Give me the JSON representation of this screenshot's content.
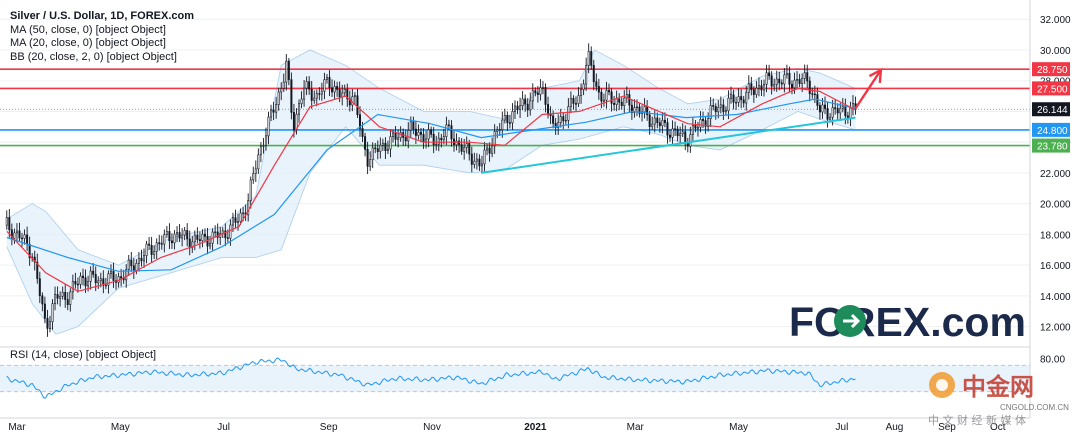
{
  "legend": {
    "title": "Silver / U.S. Dollar, 1D, FOREX.com",
    "ma50": "MA (50, close, 0) [object Object]",
    "ma20": "MA (20, close, 0) [object Object]",
    "bb": "BB (20, close, 2, 0) [object Object]",
    "rsi": "RSI (14, close) [object Object]"
  },
  "logo": {
    "text": "FOREX.com",
    "cn_text": "中金网",
    "cn_sub": "中 文 财 经 新 媒 体",
    "cn_url": "CNGOLD.COM.CN"
  },
  "colors": {
    "candle": "#131722",
    "ma20": "#f23645",
    "ma50": "#2196f3",
    "bb_fill": "#e3f0fb",
    "resistance": "#f23645",
    "support_blue": "#2196f3",
    "support_green": "#4caf50",
    "trendline": "#26c6da",
    "arrow": "#f23645",
    "logo_green": "#1e8c5a",
    "logo_navy": "#1b2a4a"
  },
  "chart_data": {
    "type": "candlestick",
    "title": "Silver / U.S. Dollar, 1D, FOREX.com",
    "y_ticks": [
      "12.000",
      "14.000",
      "16.000",
      "18.000",
      "20.000",
      "22.000",
      "24.000",
      "26.000",
      "28.000",
      "30.000",
      "32.000"
    ],
    "x_ticks": [
      "Mar",
      "May",
      "Jul",
      "Sep",
      "Nov",
      "2021",
      "Mar",
      "May",
      "Jul",
      "Aug",
      "Sep",
      "Oct"
    ],
    "ylim": [
      11,
      32.6
    ],
    "current_price": "26.144",
    "levels": [
      {
        "label": "28.750",
        "value": 28.75,
        "color": "#f23645"
      },
      {
        "label": "27.500",
        "value": 27.5,
        "color": "#f23645"
      },
      {
        "label": "24.800",
        "value": 24.8,
        "color": "#2196f3"
      },
      {
        "label": "23.780",
        "value": 23.78,
        "color": "#4caf50"
      }
    ],
    "close_path": [
      [
        "2020-02-24",
        18.6
      ],
      [
        "2020-03-05",
        17.6
      ],
      [
        "2020-03-10",
        16.8
      ],
      [
        "2020-03-13",
        15.0
      ],
      [
        "2020-03-18",
        12.0
      ],
      [
        "2020-03-24",
        13.9
      ],
      [
        "2020-03-31",
        14.0
      ],
      [
        "2020-04-08",
        15.2
      ],
      [
        "2020-04-20",
        15.0
      ],
      [
        "2020-05-01",
        15.2
      ],
      [
        "2020-05-18",
        17.0
      ],
      [
        "2020-06-01",
        18.0
      ],
      [
        "2020-06-15",
        17.6
      ],
      [
        "2020-07-01",
        18.0
      ],
      [
        "2020-07-10",
        19.0
      ],
      [
        "2020-07-15",
        20.0
      ],
      [
        "2020-07-21",
        23.0
      ],
      [
        "2020-07-27",
        25.0
      ],
      [
        "2020-08-05",
        28.0
      ],
      [
        "2020-08-07",
        29.0
      ],
      [
        "2020-08-11",
        25.0
      ],
      [
        "2020-08-17",
        27.5
      ],
      [
        "2020-08-25",
        27.0
      ],
      [
        "2020-09-01",
        28.0
      ],
      [
        "2020-09-08",
        27.0
      ],
      [
        "2020-09-16",
        27.0
      ],
      [
        "2020-09-21",
        24.0
      ],
      [
        "2020-09-24",
        23.0
      ],
      [
        "2020-10-06",
        24.0
      ],
      [
        "2020-10-20",
        24.8
      ],
      [
        "2020-11-04",
        24.0
      ],
      [
        "2020-11-09",
        24.8
      ],
      [
        "2020-11-20",
        23.5
      ],
      [
        "2020-11-30",
        22.5
      ],
      [
        "2020-12-08",
        24.5
      ],
      [
        "2020-12-17",
        25.8
      ],
      [
        "2021-01-06",
        27.5
      ],
      [
        "2021-01-11",
        24.8
      ],
      [
        "2021-01-27",
        27.0
      ],
      [
        "2021-02-01",
        29.5
      ],
      [
        "2021-02-08",
        27.0
      ],
      [
        "2021-02-26",
        26.5
      ],
      [
        "2021-03-10",
        25.5
      ],
      [
        "2021-03-31",
        24.2
      ],
      [
        "2021-04-15",
        26.0
      ],
      [
        "2021-05-04",
        27.0
      ],
      [
        "2021-05-18",
        28.0
      ],
      [
        "2021-05-28",
        28.0
      ],
      [
        "2021-06-11",
        28.0
      ],
      [
        "2021-06-18",
        26.0
      ],
      [
        "2021-06-30",
        26.0
      ],
      [
        "2021-07-09",
        26.144
      ]
    ],
    "ma20_path": [
      [
        "2020-02-24",
        18.2
      ],
      [
        "2020-03-18",
        15.5
      ],
      [
        "2020-04-06",
        14.3
      ],
      [
        "2020-04-30",
        15.0
      ],
      [
        "2020-05-25",
        16.5
      ],
      [
        "2020-06-15",
        17.3
      ],
      [
        "2020-07-10",
        18.5
      ],
      [
        "2020-07-31",
        22.5
      ],
      [
        "2020-08-21",
        26.3
      ],
      [
        "2020-09-11",
        27.0
      ],
      [
        "2020-10-01",
        25.0
      ],
      [
        "2020-10-27",
        24.0
      ],
      [
        "2020-11-23",
        24.0
      ],
      [
        "2020-12-14",
        23.8
      ],
      [
        "2021-01-05",
        25.8
      ],
      [
        "2021-01-27",
        26.0
      ],
      [
        "2021-02-22",
        27.0
      ],
      [
        "2021-03-15",
        26.0
      ],
      [
        "2021-04-01",
        25.2
      ],
      [
        "2021-04-20",
        25.0
      ],
      [
        "2021-05-15",
        26.5
      ],
      [
        "2021-06-05",
        27.5
      ],
      [
        "2021-06-18",
        27.3
      ],
      [
        "2021-07-09",
        26.1
      ]
    ],
    "ma50_path": [
      [
        "2020-02-24",
        17.8
      ],
      [
        "2020-03-31",
        16.5
      ],
      [
        "2020-04-30",
        15.6
      ],
      [
        "2020-05-31",
        15.7
      ],
      [
        "2020-06-30",
        17.2
      ],
      [
        "2020-07-31",
        19.3
      ],
      [
        "2020-08-31",
        23.5
      ],
      [
        "2020-09-30",
        25.8
      ],
      [
        "2020-10-31",
        25.2
      ],
      [
        "2020-11-30",
        24.3
      ],
      [
        "2020-12-31",
        24.8
      ],
      [
        "2021-01-31",
        25.3
      ],
      [
        "2021-02-28",
        26.0
      ],
      [
        "2021-03-31",
        25.6
      ],
      [
        "2021-04-30",
        25.8
      ],
      [
        "2021-05-31",
        26.5
      ],
      [
        "2021-06-15",
        26.8
      ],
      [
        "2021-07-09",
        26.2
      ]
    ],
    "bb_upper": [
      [
        "2020-02-24",
        19.0
      ],
      [
        "2020-03-10",
        20.0
      ],
      [
        "2020-03-18",
        19.5
      ],
      [
        "2020-04-06",
        17.0
      ],
      [
        "2020-04-30",
        16.0
      ],
      [
        "2020-05-31",
        17.8
      ],
      [
        "2020-06-30",
        18.5
      ],
      [
        "2020-07-20",
        20.5
      ],
      [
        "2020-08-04",
        29.0
      ],
      [
        "2020-08-21",
        30.0
      ],
      [
        "2020-09-11",
        29.0
      ],
      [
        "2020-10-01",
        27.5
      ],
      [
        "2020-10-27",
        26.0
      ],
      [
        "2020-11-23",
        26.0
      ],
      [
        "2020-12-14",
        25.5
      ],
      [
        "2021-01-05",
        27.5
      ],
      [
        "2021-01-27",
        28.0
      ],
      [
        "2021-02-05",
        30.0
      ],
      [
        "2021-02-22",
        29.0
      ],
      [
        "2021-03-15",
        27.5
      ],
      [
        "2021-04-01",
        26.5
      ],
      [
        "2021-04-20",
        26.8
      ],
      [
        "2021-05-15",
        28.3
      ],
      [
        "2021-06-05",
        28.8
      ],
      [
        "2021-06-18",
        28.5
      ],
      [
        "2021-07-09",
        27.5
      ]
    ],
    "bb_lower": [
      [
        "2020-02-24",
        17.2
      ],
      [
        "2020-03-10",
        13.5
      ],
      [
        "2020-03-24",
        11.5
      ],
      [
        "2020-04-06",
        12.0
      ],
      [
        "2020-04-30",
        14.5
      ],
      [
        "2020-05-31",
        15.5
      ],
      [
        "2020-06-30",
        16.5
      ],
      [
        "2020-07-20",
        16.5
      ],
      [
        "2020-08-04",
        17.0
      ],
      [
        "2020-08-21",
        22.0
      ],
      [
        "2020-09-11",
        25.0
      ],
      [
        "2020-10-01",
        22.5
      ],
      [
        "2020-10-27",
        22.5
      ],
      [
        "2020-11-23",
        22.0
      ],
      [
        "2020-12-14",
        22.2
      ],
      [
        "2021-01-05",
        23.8
      ],
      [
        "2021-01-27",
        24.2
      ],
      [
        "2021-02-22",
        25.0
      ],
      [
        "2021-03-15",
        24.5
      ],
      [
        "2021-04-01",
        23.8
      ],
      [
        "2021-04-20",
        23.5
      ],
      [
        "2021-05-15",
        24.8
      ],
      [
        "2021-06-05",
        26.0
      ],
      [
        "2021-06-18",
        25.5
      ],
      [
        "2021-07-09",
        24.8
      ]
    ],
    "trendline": [
      [
        "2020-11-30",
        22.0
      ],
      [
        "2021-07-09",
        25.6
      ]
    ],
    "arrow": [
      [
        "2021-07-09",
        26.2
      ],
      [
        "2021-07-24",
        28.7
      ]
    ],
    "rsi": {
      "y_tick": "80.00",
      "levels": [
        70,
        30
      ],
      "path": [
        [
          "2020-02-24",
          50
        ],
        [
          "2020-03-10",
          40
        ],
        [
          "2020-03-18",
          22
        ],
        [
          "2020-03-31",
          40
        ],
        [
          "2020-04-15",
          52
        ],
        [
          "2020-04-30",
          55
        ],
        [
          "2020-05-20",
          60
        ],
        [
          "2020-06-10",
          55
        ],
        [
          "2020-06-30",
          58
        ],
        [
          "2020-07-20",
          75
        ],
        [
          "2020-08-05",
          78
        ],
        [
          "2020-08-12",
          65
        ],
        [
          "2020-08-25",
          60
        ],
        [
          "2020-09-08",
          55
        ],
        [
          "2020-09-24",
          40
        ],
        [
          "2020-10-10",
          50
        ],
        [
          "2020-10-30",
          48
        ],
        [
          "2020-11-15",
          52
        ],
        [
          "2020-11-30",
          42
        ],
        [
          "2020-12-15",
          55
        ],
        [
          "2021-01-06",
          60
        ],
        [
          "2021-01-12",
          48
        ],
        [
          "2021-02-01",
          65
        ],
        [
          "2021-02-10",
          52
        ],
        [
          "2021-03-01",
          48
        ],
        [
          "2021-03-31",
          45
        ],
        [
          "2021-04-20",
          55
        ],
        [
          "2021-05-18",
          62
        ],
        [
          "2021-06-11",
          58
        ],
        [
          "2021-06-18",
          40
        ],
        [
          "2021-06-30",
          46
        ],
        [
          "2021-07-09",
          50
        ]
      ]
    }
  }
}
